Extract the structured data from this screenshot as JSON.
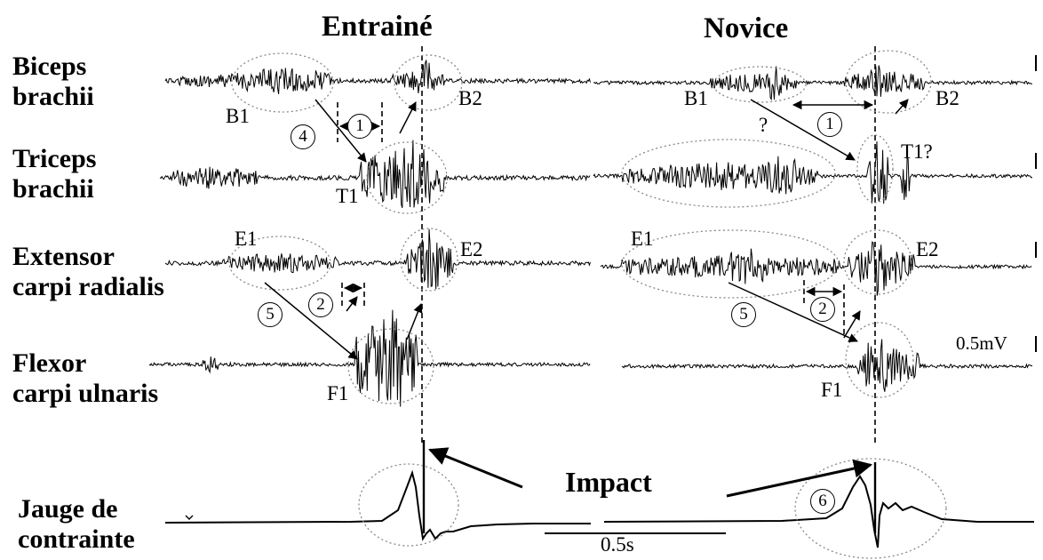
{
  "headers": {
    "trained": "Entrainé",
    "novice": "Novice"
  },
  "channels": [
    {
      "line1": "Biceps",
      "line2": "brachii"
    },
    {
      "line1": "Triceps",
      "line2": "brachii"
    },
    {
      "line1": "Extensor",
      "line2": "carpi radialis"
    },
    {
      "line1": "Flexor",
      "line2": "carpi ulnaris"
    },
    {
      "line1": "Jauge de",
      "line2": "contrainte"
    }
  ],
  "annotations": {
    "trained": {
      "b1": "B1",
      "b2": "B2",
      "t1": "T1",
      "e1": "E1",
      "e2": "E2",
      "f1": "F1"
    },
    "novice": {
      "b1": "B1",
      "b2": "B2",
      "t1": "T1?",
      "question": "?",
      "e1": "E1",
      "e2": "E2",
      "f1": "F1"
    }
  },
  "markers": {
    "m1": "1",
    "m2": "2",
    "m4": "4",
    "m5": "5",
    "m6": "6"
  },
  "impact": "Impact",
  "scale": {
    "voltage": "0.5mV",
    "time": "0.5s"
  }
}
